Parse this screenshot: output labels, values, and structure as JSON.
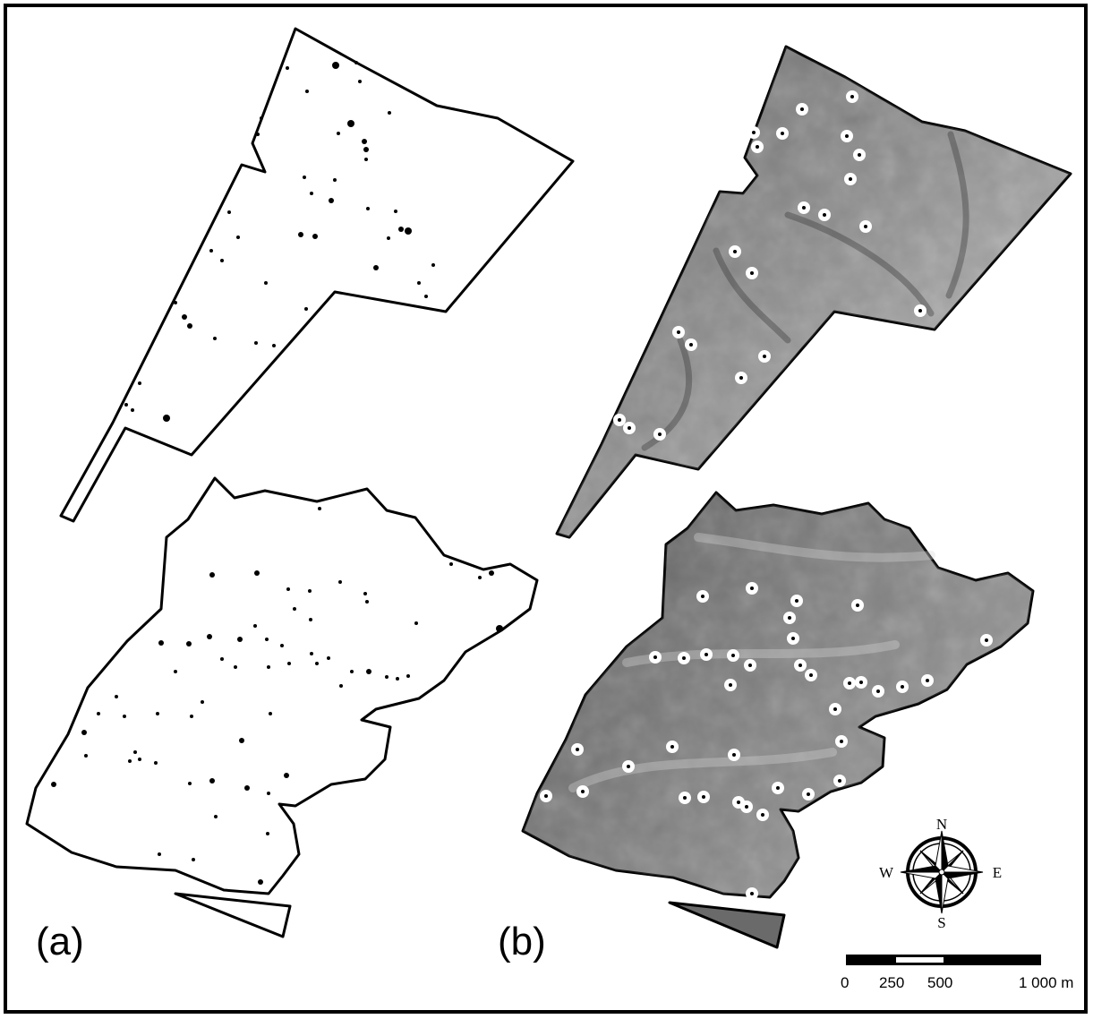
{
  "figure": {
    "panel_a_label": "(a)",
    "panel_b_label": "(b)"
  },
  "compass": {
    "north": "N",
    "south": "S",
    "east": "E",
    "west": "W"
  },
  "scale_bar": {
    "ticks": [
      "0",
      "250",
      "500",
      "1 000 m"
    ]
  },
  "colors": {
    "outline": "#000000",
    "hillshade_dark": "#3c3c3c",
    "hillshade_light": "#bdbdbd",
    "marker_fill": "#ffffff",
    "marker_dot": "#000000"
  },
  "icons": [
    "compass-rose-icon"
  ]
}
